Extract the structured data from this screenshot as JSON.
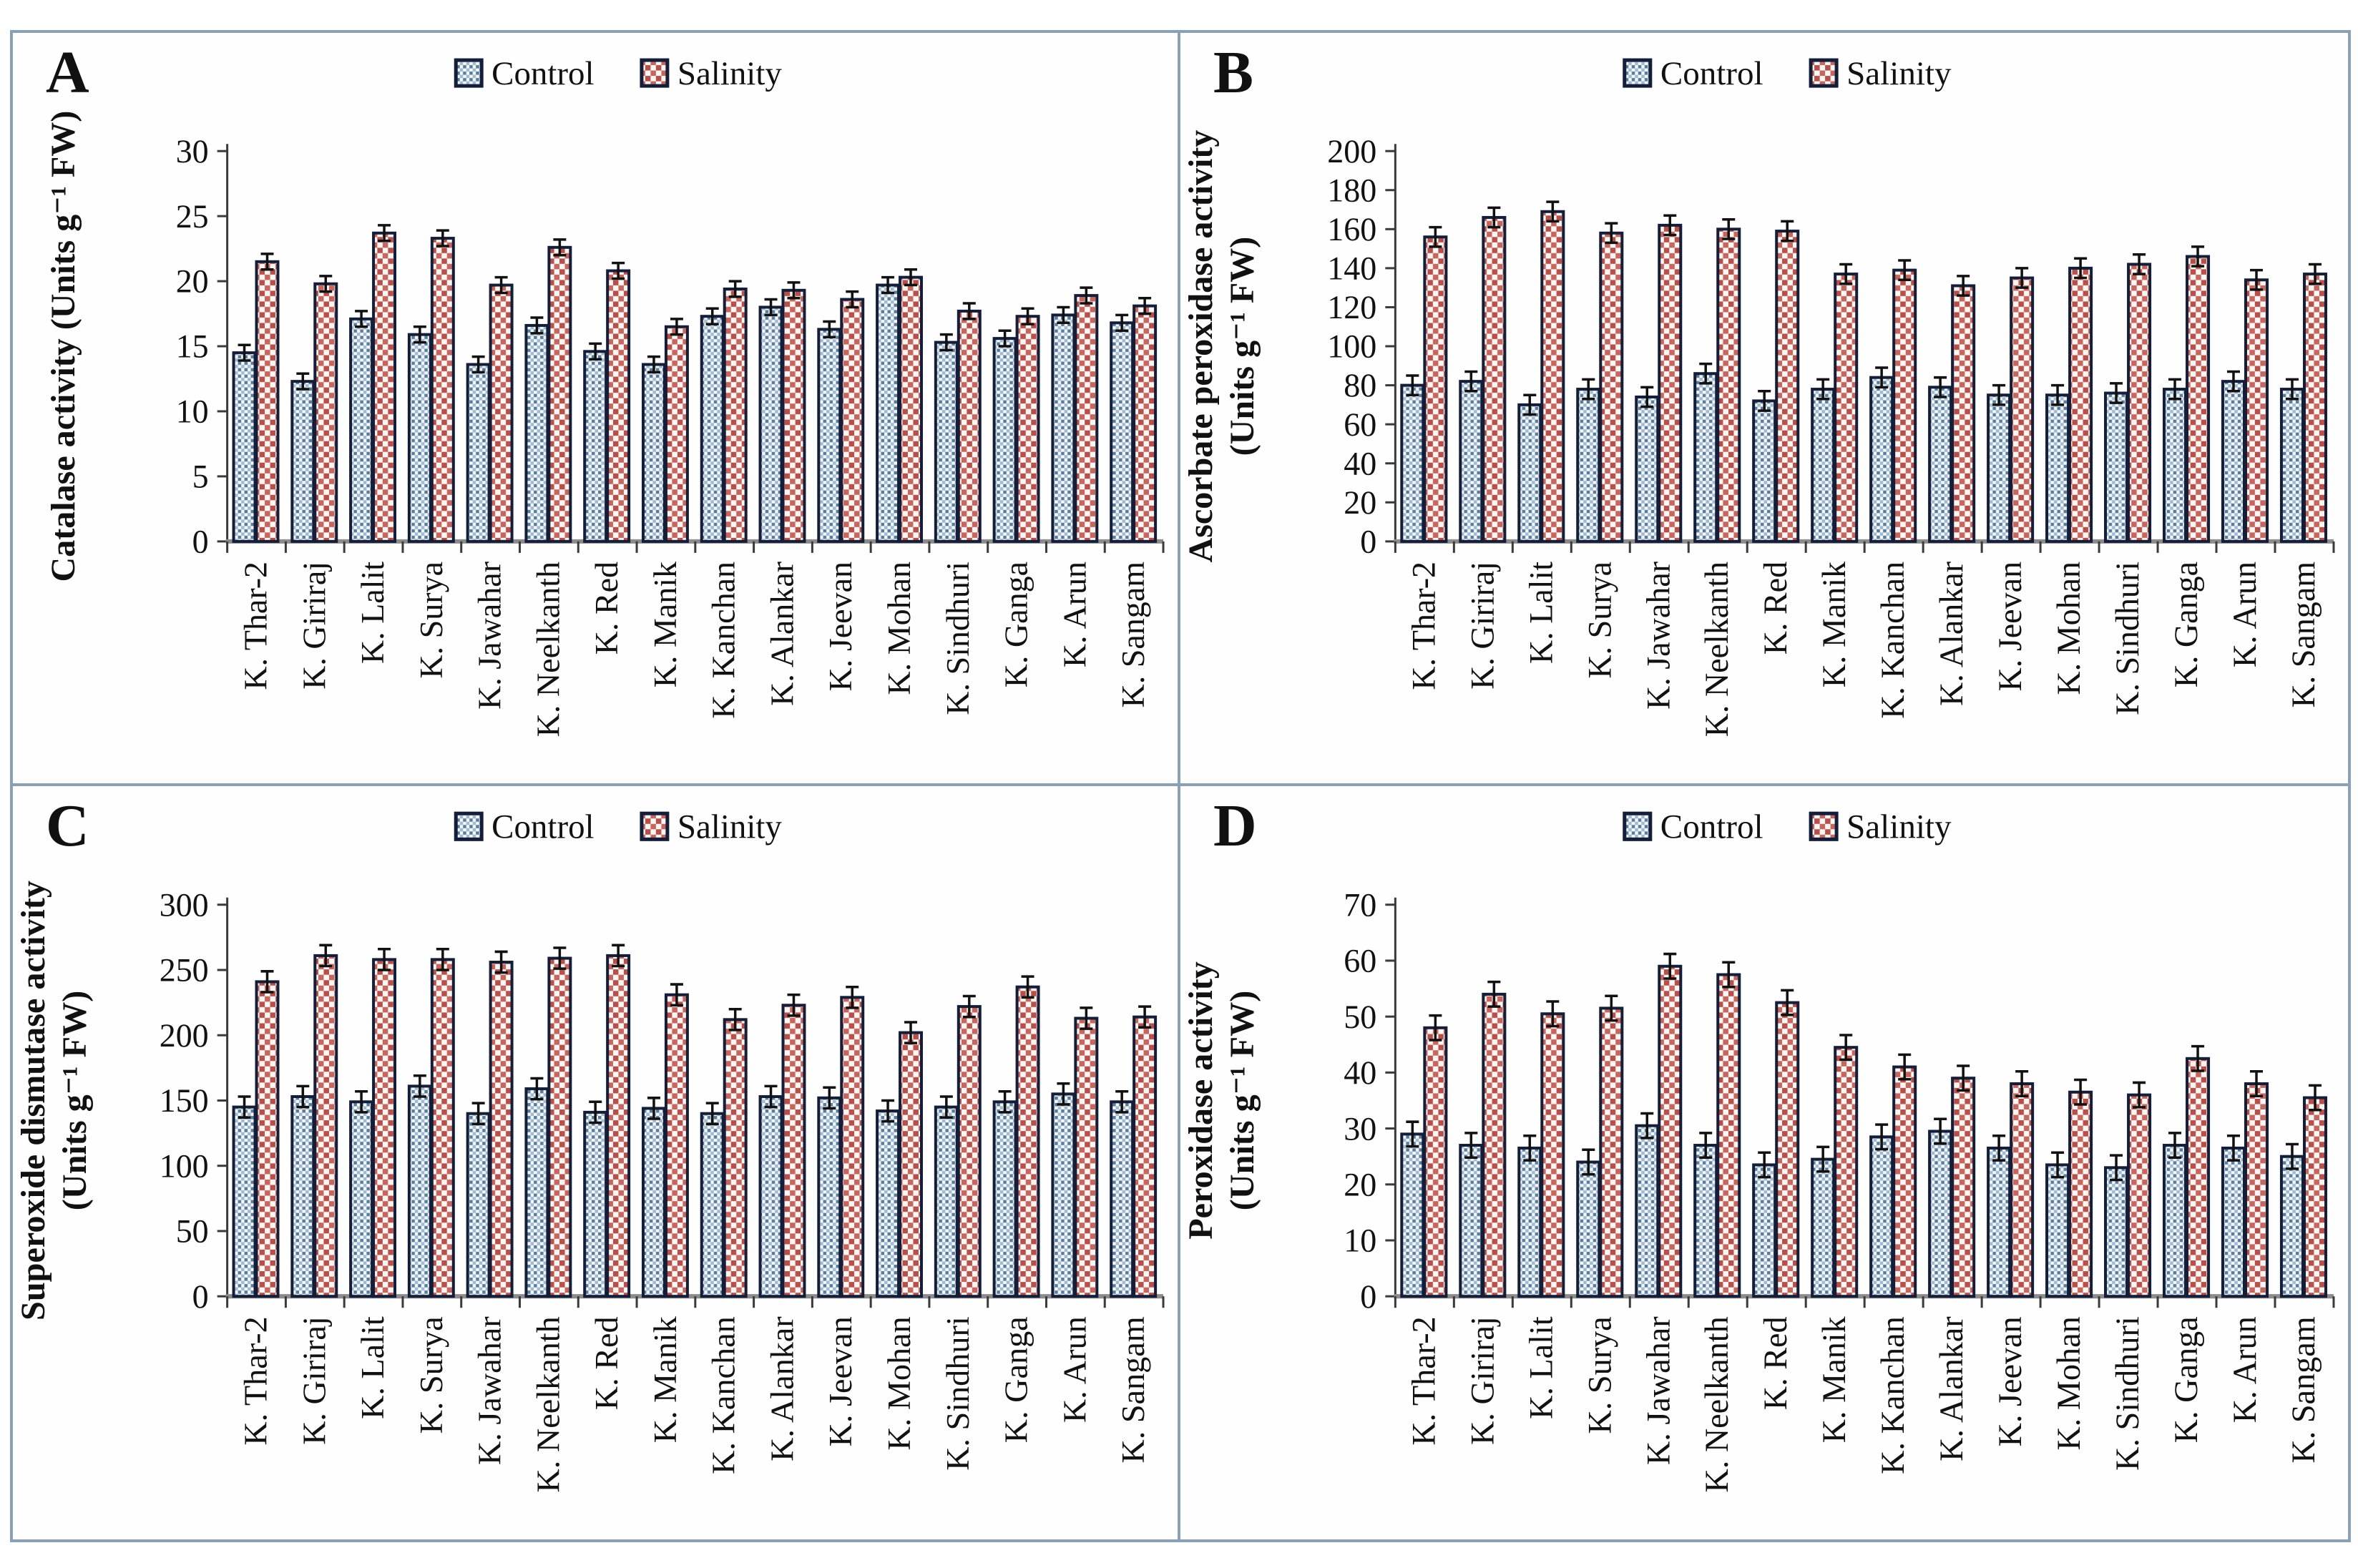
{
  "legend": {
    "control_label": "Control",
    "salinity_label": "Salinity"
  },
  "colors": {
    "frame": "#8aa0b4",
    "bar_border": "#141e38",
    "control_bg": "#f2f7fb",
    "control_dot_dark": "#5b7c9a",
    "control_dot_light": "#a4bace",
    "salinity_bg": "#fdf5f3",
    "salinity_dot_dark": "#b5514a",
    "salinity_dot_light": "#c4685f",
    "axis": "#3a3a3a",
    "baseline": "#8c8c8c",
    "text": "#111111"
  },
  "chart_data": [
    {
      "type": "bar",
      "panel_letter": "A",
      "ylabel_lines": [
        "Catalase activity (Units g⁻¹ FW)"
      ],
      "ylim": [
        0,
        30
      ],
      "ystep": 5,
      "grid": false,
      "legend_position": "top-center",
      "categories": [
        "K. Thar-2",
        "K. Giriraj",
        "K. Lalit",
        "K. Surya",
        "K. Jawahar",
        "K. Neelkanth",
        "K. Red",
        "K. Manik",
        "K. Kanchan",
        "K. Alankar",
        "K. Jeevan",
        "K. Mohan",
        "K. Sindhuri",
        "K. Ganga",
        "K. Arun",
        "K. Sangam"
      ],
      "series": [
        {
          "name": "Control",
          "error": 0.6,
          "values": [
            14.5,
            12.3,
            17.1,
            15.9,
            13.6,
            16.6,
            14.6,
            13.6,
            17.3,
            18.0,
            16.3,
            19.7,
            15.3,
            15.6,
            17.4,
            16.8
          ]
        },
        {
          "name": "Salinity",
          "error": 0.6,
          "values": [
            21.5,
            19.8,
            23.7,
            23.3,
            19.7,
            22.6,
            20.8,
            16.5,
            19.4,
            19.3,
            18.6,
            20.3,
            17.7,
            17.3,
            18.9,
            18.1
          ]
        }
      ]
    },
    {
      "type": "bar",
      "panel_letter": "B",
      "ylabel_lines": [
        "Ascorbate peroxidase activity",
        "(Units g⁻¹ FW)"
      ],
      "ylim": [
        0,
        200
      ],
      "ystep": 20,
      "grid": false,
      "legend_position": "top-center",
      "categories": [
        "K. Thar-2",
        "K. Giriraj",
        "K. Lalit",
        "K. Surya",
        "K. Jawahar",
        "K. Neelkanth",
        "K. Red",
        "K. Manik",
        "K. Kanchan",
        "K. Alankar",
        "K. Jeevan",
        "K. Mohan",
        "K. Sindhuri",
        "K. Ganga",
        "K. Arun",
        "K. Sangam"
      ],
      "series": [
        {
          "name": "Control",
          "error": 5,
          "values": [
            80,
            82,
            70,
            78,
            74,
            86,
            72,
            78,
            84,
            79,
            75,
            75,
            76,
            78,
            82,
            78
          ]
        },
        {
          "name": "Salinity",
          "error": 5,
          "values": [
            156,
            166,
            169,
            158,
            162,
            160,
            159,
            137,
            139,
            131,
            135,
            140,
            142,
            146,
            134,
            137
          ]
        }
      ]
    },
    {
      "type": "bar",
      "panel_letter": "C",
      "ylabel_lines": [
        "Superoxide dismutase activity",
        "(Units g⁻¹ FW)"
      ],
      "ylim": [
        0,
        300
      ],
      "ystep": 50,
      "grid": false,
      "legend_position": "top-center",
      "categories": [
        "K. Thar-2",
        "K. Giriraj",
        "K. Lalit",
        "K. Surya",
        "K. Jawahar",
        "K. Neelkanth",
        "K. Red",
        "K. Manik",
        "K. Kanchan",
        "K. Alankar",
        "K. Jeevan",
        "K. Mohan",
        "K. Sindhuri",
        "K. Ganga",
        "K. Arun",
        "K. Sangam"
      ],
      "series": [
        {
          "name": "Control",
          "error": 8,
          "values": [
            145,
            153,
            149,
            161,
            140,
            159,
            141,
            144,
            140,
            153,
            152,
            142,
            145,
            149,
            155,
            149
          ]
        },
        {
          "name": "Salinity",
          "error": 8,
          "values": [
            241,
            261,
            258,
            258,
            256,
            259,
            261,
            231,
            212,
            223,
            229,
            202,
            222,
            237,
            213,
            214
          ]
        }
      ]
    },
    {
      "type": "bar",
      "panel_letter": "D",
      "ylabel_lines": [
        "Peroxidase activity",
        "(Units g⁻¹ FW)"
      ],
      "ylim": [
        0,
        70
      ],
      "ystep": 10,
      "grid": false,
      "legend_position": "top-center",
      "categories": [
        "K. Thar-2",
        "K. Giriraj",
        "K. Lalit",
        "K. Surya",
        "K. Jawahar",
        "K. Neelkanth",
        "K. Red",
        "K. Manik",
        "K. Kanchan",
        "K. Alankar",
        "K. Jeevan",
        "K. Mohan",
        "K. Sindhuri",
        "K. Ganga",
        "K. Arun",
        "K. Sangam"
      ],
      "series": [
        {
          "name": "Control",
          "error": 2.2,
          "values": [
            29,
            27,
            26.5,
            24,
            30.5,
            27,
            23.5,
            24.5,
            28.5,
            29.5,
            26.5,
            23.5,
            23,
            27,
            26.5,
            25
          ]
        },
        {
          "name": "Salinity",
          "error": 2.2,
          "values": [
            48,
            54,
            50.5,
            51.5,
            59,
            57.5,
            52.5,
            44.5,
            41,
            39,
            38,
            36.5,
            36,
            42.5,
            38,
            35.5
          ]
        }
      ]
    }
  ]
}
